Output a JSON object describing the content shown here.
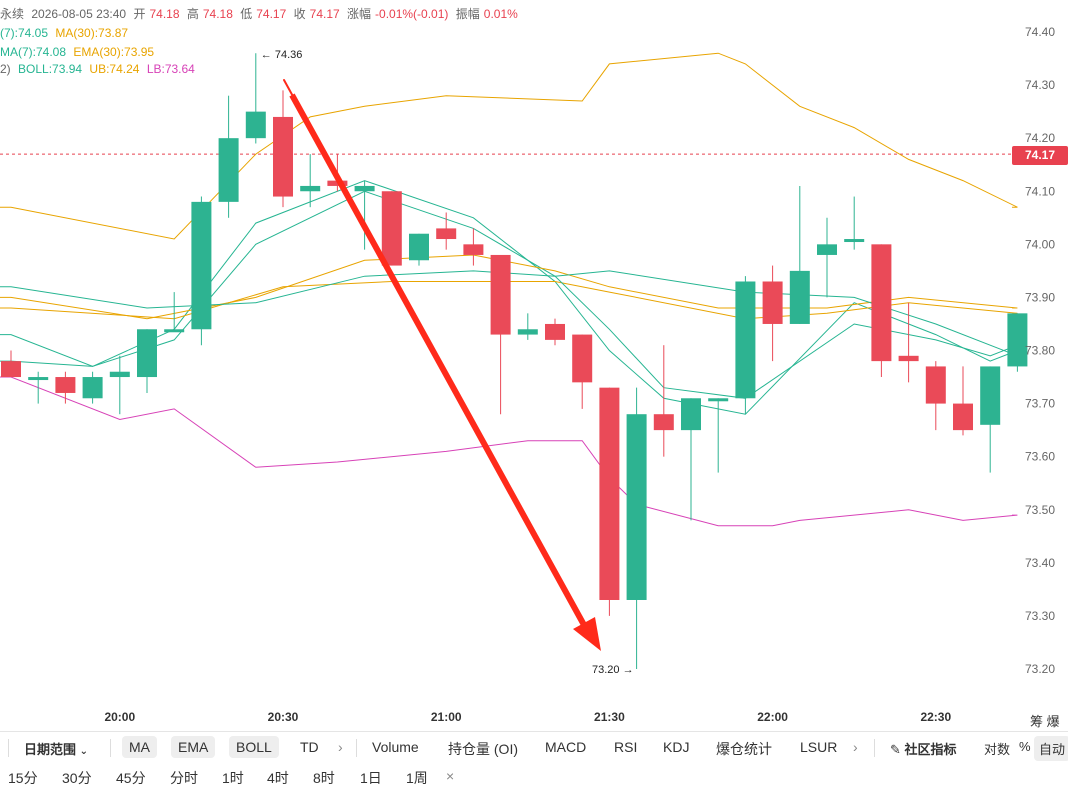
{
  "info": {
    "line1": {
      "prefix": "永续",
      "datetime": "2026-08-05 23:40",
      "open_label": "开",
      "open": "74.18",
      "high_label": "高",
      "high": "74.18",
      "low_label": "低",
      "low": "74.17",
      "close_label": "收",
      "close": "74.17",
      "change_label": "涨幅",
      "change": "-0.01%(-0.01)",
      "amp_label": "振幅",
      "amp": "0.01%"
    },
    "line2": {
      "ma7": "(7):74.05",
      "ma30": "MA(30):73.87"
    },
    "line3": {
      "ema7": "MA(7):74.08",
      "ema30": "EMA(30):73.95"
    },
    "line4": {
      "boll_prefix": "2)",
      "boll": "BOLL:73.94",
      "ub": "UB:74.24",
      "lb": "LB:73.64"
    }
  },
  "chart_data": {
    "type": "candlestick",
    "y_axis_ticks": [
      "74.40",
      "74.30",
      "74.20",
      "74.10",
      "74.00",
      "73.90",
      "73.80",
      "73.70",
      "73.60",
      "73.50",
      "73.40",
      "73.30",
      "73.20"
    ],
    "ylim": [
      73.12,
      74.45
    ],
    "x_axis_ticks": [
      "20:00",
      "20:30",
      "21:00",
      "21:30",
      "22:00",
      "22:30"
    ],
    "current_price": "74.17",
    "max_label": "← 74.36",
    "min_label": "73.20 →",
    "candles": [
      {
        "o": 73.78,
        "h": 73.8,
        "l": 73.76,
        "c": 73.75
      },
      {
        "o": 73.75,
        "h": 73.76,
        "l": 73.7,
        "c": 73.75
      },
      {
        "o": 73.75,
        "h": 73.76,
        "l": 73.7,
        "c": 73.72
      },
      {
        "o": 73.71,
        "h": 73.76,
        "l": 73.7,
        "c": 73.75
      },
      {
        "o": 73.75,
        "h": 73.79,
        "l": 73.68,
        "c": 73.76
      },
      {
        "o": 73.75,
        "h": 73.84,
        "l": 73.72,
        "c": 73.84
      },
      {
        "o": 73.84,
        "h": 73.91,
        "l": 73.84,
        "c": 73.84
      },
      {
        "o": 73.84,
        "h": 74.09,
        "l": 73.81,
        "c": 74.08
      },
      {
        "o": 74.08,
        "h": 74.28,
        "l": 74.05,
        "c": 74.2
      },
      {
        "o": 74.2,
        "h": 74.36,
        "l": 74.19,
        "c": 74.25
      },
      {
        "o": 74.24,
        "h": 74.29,
        "l": 74.07,
        "c": 74.09
      },
      {
        "o": 74.1,
        "h": 74.17,
        "l": 74.07,
        "c": 74.11
      },
      {
        "o": 74.12,
        "h": 74.17,
        "l": 74.1,
        "c": 74.11
      },
      {
        "o": 74.1,
        "h": 74.12,
        "l": 73.99,
        "c": 74.11
      },
      {
        "o": 74.1,
        "h": 74.1,
        "l": 73.96,
        "c": 73.96
      },
      {
        "o": 73.97,
        "h": 74.02,
        "l": 73.96,
        "c": 74.02
      },
      {
        "o": 74.03,
        "h": 74.06,
        "l": 73.99,
        "c": 74.01
      },
      {
        "o": 74.0,
        "h": 74.03,
        "l": 73.96,
        "c": 73.98
      },
      {
        "o": 73.98,
        "h": 73.98,
        "l": 73.68,
        "c": 73.83
      },
      {
        "o": 73.83,
        "h": 73.87,
        "l": 73.82,
        "c": 73.84
      },
      {
        "o": 73.85,
        "h": 73.86,
        "l": 73.81,
        "c": 73.82
      },
      {
        "o": 73.83,
        "h": 73.83,
        "l": 73.69,
        "c": 73.74
      },
      {
        "o": 73.73,
        "h": 73.73,
        "l": 73.3,
        "c": 73.33
      },
      {
        "o": 73.33,
        "h": 73.73,
        "l": 73.2,
        "c": 73.68
      },
      {
        "o": 73.68,
        "h": 73.81,
        "l": 73.6,
        "c": 73.65
      },
      {
        "o": 73.65,
        "h": 73.71,
        "l": 73.48,
        "c": 73.71
      },
      {
        "o": 73.71,
        "h": 73.71,
        "l": 73.57,
        "c": 73.71
      },
      {
        "o": 73.71,
        "h": 73.94,
        "l": 73.68,
        "c": 73.93
      },
      {
        "o": 73.93,
        "h": 73.96,
        "l": 73.78,
        "c": 73.85
      },
      {
        "o": 73.85,
        "h": 74.11,
        "l": 73.85,
        "c": 73.95
      },
      {
        "o": 73.98,
        "h": 74.05,
        "l": 73.9,
        "c": 74.0
      },
      {
        "o": 74.01,
        "h": 74.09,
        "l": 73.99,
        "c": 74.01
      },
      {
        "o": 74.0,
        "h": 74.0,
        "l": 73.75,
        "c": 73.78
      },
      {
        "o": 73.79,
        "h": 73.89,
        "l": 73.74,
        "c": 73.78
      },
      {
        "o": 73.77,
        "h": 73.78,
        "l": 73.65,
        "c": 73.7
      },
      {
        "o": 73.7,
        "h": 73.77,
        "l": 73.64,
        "c": 73.65
      },
      {
        "o": 73.66,
        "h": 73.77,
        "l": 73.57,
        "c": 73.77
      },
      {
        "o": 73.77,
        "h": 73.87,
        "l": 73.76,
        "c": 73.87
      }
    ],
    "lines": {
      "ma7": {
        "color": "#26b592",
        "points": [
          [
            0,
            73.78
          ],
          [
            3,
            73.77
          ],
          [
            6,
            73.84
          ],
          [
            9,
            74.04
          ],
          [
            13,
            74.12
          ],
          [
            17,
            74.05
          ],
          [
            20,
            73.93
          ],
          [
            22,
            73.8
          ],
          [
            24,
            73.71
          ],
          [
            27,
            73.68
          ],
          [
            31,
            73.89
          ],
          [
            34,
            73.83
          ],
          [
            36,
            73.78
          ],
          [
            37,
            73.8
          ]
        ]
      },
      "ma30": {
        "color": "#e8a400",
        "points": [
          [
            0,
            73.88
          ],
          [
            6,
            73.86
          ],
          [
            10,
            73.92
          ],
          [
            14,
            73.93
          ],
          [
            20,
            73.93
          ],
          [
            22,
            73.91
          ],
          [
            27,
            73.86
          ],
          [
            30,
            73.87
          ],
          [
            33,
            73.89
          ],
          [
            37,
            73.87
          ]
        ]
      },
      "ema7": {
        "color": "#26b592",
        "points": [
          [
            0,
            73.83
          ],
          [
            3,
            73.77
          ],
          [
            6,
            73.82
          ],
          [
            9,
            74.0
          ],
          [
            13,
            74.1
          ],
          [
            17,
            74.03
          ],
          [
            20,
            73.94
          ],
          [
            22,
            73.84
          ],
          [
            24,
            73.73
          ],
          [
            27,
            73.71
          ],
          [
            31,
            73.85
          ],
          [
            34,
            73.82
          ],
          [
            36,
            73.79
          ],
          [
            37,
            73.81
          ]
        ]
      },
      "ema30": {
        "color": "#e8a400",
        "points": [
          [
            0,
            73.9
          ],
          [
            5,
            73.86
          ],
          [
            9,
            73.9
          ],
          [
            13,
            73.97
          ],
          [
            17,
            73.98
          ],
          [
            20,
            73.95
          ],
          [
            22,
            73.92
          ],
          [
            26,
            73.88
          ],
          [
            30,
            73.88
          ],
          [
            33,
            73.9
          ],
          [
            37,
            73.88
          ]
        ]
      },
      "boll_mid": {
        "color": "#26b592",
        "points": [
          [
            0,
            73.92
          ],
          [
            5,
            73.88
          ],
          [
            9,
            73.89
          ],
          [
            13,
            73.94
          ],
          [
            17,
            73.95
          ],
          [
            20,
            73.94
          ],
          [
            22,
            73.95
          ],
          [
            27,
            73.91
          ],
          [
            31,
            73.9
          ],
          [
            34,
            73.85
          ],
          [
            37,
            73.79
          ]
        ]
      },
      "ub": {
        "color": "#e8a400",
        "points": [
          [
            0,
            74.07
          ],
          [
            6,
            74.01
          ],
          [
            9,
            74.17
          ],
          [
            11,
            74.24
          ],
          [
            13,
            74.26
          ],
          [
            16,
            74.28
          ],
          [
            21,
            74.27
          ],
          [
            22,
            74.34
          ],
          [
            26,
            74.36
          ],
          [
            27,
            74.34
          ],
          [
            29,
            74.26
          ],
          [
            31,
            74.22
          ],
          [
            33,
            74.16
          ],
          [
            35,
            74.12
          ],
          [
            37,
            74.07
          ]
        ]
      },
      "lb": {
        "color": "#d742b7",
        "points": [
          [
            0,
            73.75
          ],
          [
            4,
            73.67
          ],
          [
            6,
            73.69
          ],
          [
            9,
            73.58
          ],
          [
            12,
            73.59
          ],
          [
            16,
            73.61
          ],
          [
            19,
            73.63
          ],
          [
            21,
            73.63
          ],
          [
            22,
            73.56
          ],
          [
            23,
            73.51
          ],
          [
            26,
            73.47
          ],
          [
            28,
            73.47
          ],
          [
            29,
            73.48
          ],
          [
            33,
            73.5
          ],
          [
            35,
            73.48
          ],
          [
            37,
            73.49
          ]
        ]
      }
    }
  },
  "toolbar": {
    "range": "日期范围",
    "ind_ma": "MA",
    "ind_ema": "EMA",
    "ind_boll": "BOLL",
    "ind_td": "TD",
    "sub_volume": "Volume",
    "sub_oi": "持仓量 (OI)",
    "sub_macd": "MACD",
    "sub_rsi": "RSI",
    "sub_kdj": "KDJ",
    "sub_liq": "爆仓统计",
    "sub_lsur": "LSUR",
    "community": "社区指标",
    "log": "对数",
    "pct": "%",
    "auto": "自动",
    "right_top": "筹 爆"
  },
  "timeframes": [
    "15分",
    "30分",
    "45分",
    "分时",
    "1时",
    "4时",
    "8时",
    "1日",
    "1周"
  ],
  "timeframe_close": "×"
}
